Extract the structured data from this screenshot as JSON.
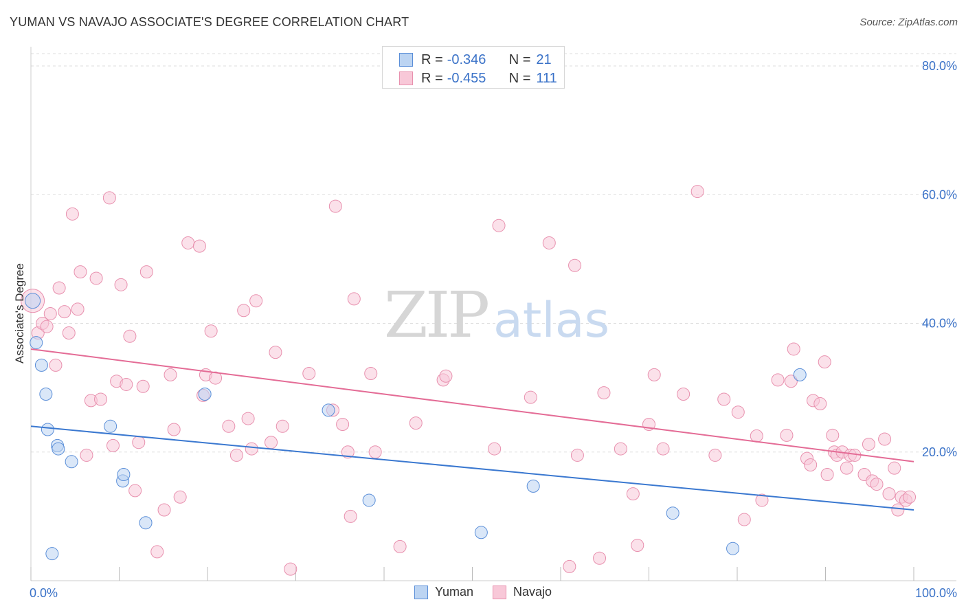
{
  "title": "YUMAN VS NAVAJO ASSOCIATE'S DEGREE CORRELATION CHART",
  "source": "Source: ZipAtlas.com",
  "watermark": {
    "zip": "ZIP",
    "atlas": "atlas"
  },
  "colors": {
    "yuman_fill": "#bcd4f2",
    "yuman_stroke": "#5a8ed8",
    "yuman_line": "#3a78d0",
    "navajo_fill": "#f8c8d8",
    "navajo_stroke": "#e890ae",
    "navajo_line": "#e46c96",
    "grid": "#dddddd",
    "axis_text": "#3a72c8"
  },
  "legend_top": {
    "rows": [
      {
        "series": "yuman",
        "r_label": "R =",
        "r_value": "-0.346",
        "n_label": "N =",
        "n_value": "21"
      },
      {
        "series": "navajo",
        "r_label": "R =",
        "r_value": "-0.455",
        "n_label": "N =",
        "n_value": "111"
      }
    ]
  },
  "legend_bottom": {
    "items": [
      {
        "series": "yuman",
        "label": "Yuman"
      },
      {
        "series": "navajo",
        "label": "Navajo"
      }
    ]
  },
  "chart_data": {
    "type": "scatter",
    "title": "YUMAN VS NAVAJO ASSOCIATE'S DEGREE CORRELATION CHART",
    "xlabel": "",
    "ylabel": "Associate's Degree",
    "xlim": [
      0,
      100
    ],
    "ylim": [
      0,
      80
    ],
    "x_tick_labels": [
      "0.0%",
      "100.0%"
    ],
    "y_ticks": [
      20,
      40,
      60,
      80
    ],
    "y_tick_labels": [
      "20.0%",
      "40.0%",
      "60.0%",
      "80.0%"
    ],
    "grid": true,
    "series": [
      {
        "name": "Yuman",
        "key": "yuman",
        "r": -0.346,
        "n": 21,
        "trend": {
          "x": [
            0,
            100
          ],
          "y": [
            24.0,
            11.0
          ]
        },
        "points": [
          [
            0.2,
            43.5,
            10
          ],
          [
            0.6,
            37.0,
            8
          ],
          [
            1.2,
            33.5,
            8
          ],
          [
            1.7,
            29.0,
            8
          ],
          [
            1.9,
            23.5,
            8
          ],
          [
            3.0,
            21.0,
            8
          ],
          [
            3.1,
            20.5,
            8
          ],
          [
            4.6,
            18.5,
            8
          ],
          [
            2.4,
            4.2,
            8
          ],
          [
            9.0,
            24.0,
            8
          ],
          [
            10.4,
            15.5,
            8
          ],
          [
            10.5,
            16.5,
            8
          ],
          [
            13.0,
            9.0,
            8
          ],
          [
            19.7,
            29.0,
            8
          ],
          [
            33.7,
            26.5,
            8
          ],
          [
            38.3,
            12.5,
            8
          ],
          [
            51.0,
            7.5,
            8
          ],
          [
            56.9,
            14.7,
            8
          ],
          [
            72.7,
            10.5,
            8
          ],
          [
            79.5,
            5.0,
            8
          ],
          [
            87.1,
            32.0,
            8
          ]
        ]
      },
      {
        "name": "Navajo",
        "key": "navajo",
        "r": -0.455,
        "n": 111,
        "trend": {
          "x": [
            0,
            100
          ],
          "y": [
            36.0,
            18.5
          ]
        },
        "points": [
          [
            0.2,
            43.5,
            16
          ],
          [
            0.8,
            38.5,
            8
          ],
          [
            1.3,
            40.0,
            8
          ],
          [
            1.8,
            39.5,
            8
          ],
          [
            2.2,
            41.5,
            8
          ],
          [
            2.8,
            33.5,
            8
          ],
          [
            3.2,
            45.5,
            8
          ],
          [
            3.8,
            41.8,
            8
          ],
          [
            4.3,
            38.5,
            8
          ],
          [
            5.3,
            42.2,
            8
          ],
          [
            4.7,
            57.0,
            8
          ],
          [
            5.6,
            48.0,
            8
          ],
          [
            6.3,
            19.5,
            8
          ],
          [
            6.8,
            28.0,
            8
          ],
          [
            7.4,
            47.0,
            8
          ],
          [
            7.9,
            28.2,
            8
          ],
          [
            8.9,
            59.5,
            8
          ],
          [
            9.3,
            21.0,
            8
          ],
          [
            9.7,
            31.0,
            8
          ],
          [
            10.2,
            46.0,
            8
          ],
          [
            10.8,
            30.5,
            8
          ],
          [
            11.2,
            38.0,
            8
          ],
          [
            11.8,
            14.0,
            8
          ],
          [
            12.2,
            21.5,
            8
          ],
          [
            12.7,
            30.2,
            8
          ],
          [
            13.1,
            48.0,
            8
          ],
          [
            14.3,
            4.5,
            8
          ],
          [
            15.1,
            11.0,
            8
          ],
          [
            15.8,
            32.0,
            8
          ],
          [
            16.2,
            23.5,
            8
          ],
          [
            16.9,
            13.0,
            8
          ],
          [
            17.8,
            52.5,
            8
          ],
          [
            19.1,
            52.0,
            8
          ],
          [
            19.5,
            28.8,
            8
          ],
          [
            19.8,
            32.0,
            8
          ],
          [
            20.4,
            38.8,
            8
          ],
          [
            20.9,
            31.5,
            8
          ],
          [
            22.4,
            24.0,
            8
          ],
          [
            23.3,
            19.5,
            8
          ],
          [
            24.1,
            42.0,
            8
          ],
          [
            24.6,
            25.2,
            8
          ],
          [
            25.0,
            20.5,
            8
          ],
          [
            25.5,
            43.5,
            8
          ],
          [
            27.2,
            21.5,
            8
          ],
          [
            27.7,
            35.5,
            8
          ],
          [
            28.5,
            24.0,
            8
          ],
          [
            29.4,
            1.8,
            8
          ],
          [
            31.5,
            32.2,
            8
          ],
          [
            34.2,
            26.5,
            8
          ],
          [
            34.5,
            58.2,
            8
          ],
          [
            35.3,
            24.3,
            8
          ],
          [
            35.9,
            20.0,
            8
          ],
          [
            36.2,
            10.0,
            8
          ],
          [
            36.6,
            43.8,
            8
          ],
          [
            38.5,
            32.2,
            8
          ],
          [
            39.0,
            20.0,
            8
          ],
          [
            41.8,
            5.3,
            8
          ],
          [
            43.6,
            24.5,
            8
          ],
          [
            46.7,
            31.2,
            8
          ],
          [
            47.0,
            31.8,
            8
          ],
          [
            52.5,
            20.5,
            8
          ],
          [
            53.0,
            55.2,
            8
          ],
          [
            56.6,
            28.5,
            8
          ],
          [
            58.7,
            52.5,
            8
          ],
          [
            61.0,
            2.2,
            8
          ],
          [
            61.6,
            49.0,
            8
          ],
          [
            61.9,
            19.5,
            8
          ],
          [
            64.4,
            3.5,
            8
          ],
          [
            64.9,
            29.2,
            8
          ],
          [
            66.8,
            20.5,
            8
          ],
          [
            68.2,
            13.5,
            8
          ],
          [
            68.7,
            5.5,
            8
          ],
          [
            70.0,
            24.3,
            8
          ],
          [
            70.6,
            32.0,
            8
          ],
          [
            71.6,
            20.5,
            8
          ],
          [
            73.9,
            29.0,
            8
          ],
          [
            75.5,
            60.5,
            8
          ],
          [
            77.5,
            19.5,
            8
          ],
          [
            78.5,
            28.2,
            8
          ],
          [
            80.1,
            26.2,
            8
          ],
          [
            80.8,
            9.5,
            8
          ],
          [
            82.2,
            22.5,
            8
          ],
          [
            82.8,
            12.5,
            8
          ],
          [
            84.6,
            31.2,
            8
          ],
          [
            85.6,
            22.6,
            8
          ],
          [
            86.1,
            31.0,
            8
          ],
          [
            86.4,
            36.0,
            8
          ],
          [
            87.9,
            19.0,
            8
          ],
          [
            88.3,
            18.0,
            8
          ],
          [
            88.6,
            28.0,
            8
          ],
          [
            89.4,
            27.5,
            8
          ],
          [
            89.9,
            34.0,
            8
          ],
          [
            90.2,
            16.5,
            8
          ],
          [
            90.8,
            22.6,
            8
          ],
          [
            91.0,
            20.0,
            8
          ],
          [
            91.3,
            19.5,
            8
          ],
          [
            91.9,
            20.0,
            8
          ],
          [
            92.4,
            17.5,
            8
          ],
          [
            92.8,
            19.5,
            8
          ],
          [
            93.3,
            19.5,
            8
          ],
          [
            94.4,
            16.5,
            8
          ],
          [
            94.9,
            21.2,
            8
          ],
          [
            95.3,
            15.5,
            8
          ],
          [
            95.8,
            15.0,
            8
          ],
          [
            96.7,
            22.0,
            8
          ],
          [
            97.2,
            13.5,
            8
          ],
          [
            97.8,
            17.5,
            8
          ],
          [
            98.2,
            11.0,
            8
          ],
          [
            98.6,
            13.0,
            8
          ],
          [
            99.1,
            12.5,
            8
          ],
          [
            99.5,
            13.0,
            8
          ]
        ]
      }
    ]
  }
}
